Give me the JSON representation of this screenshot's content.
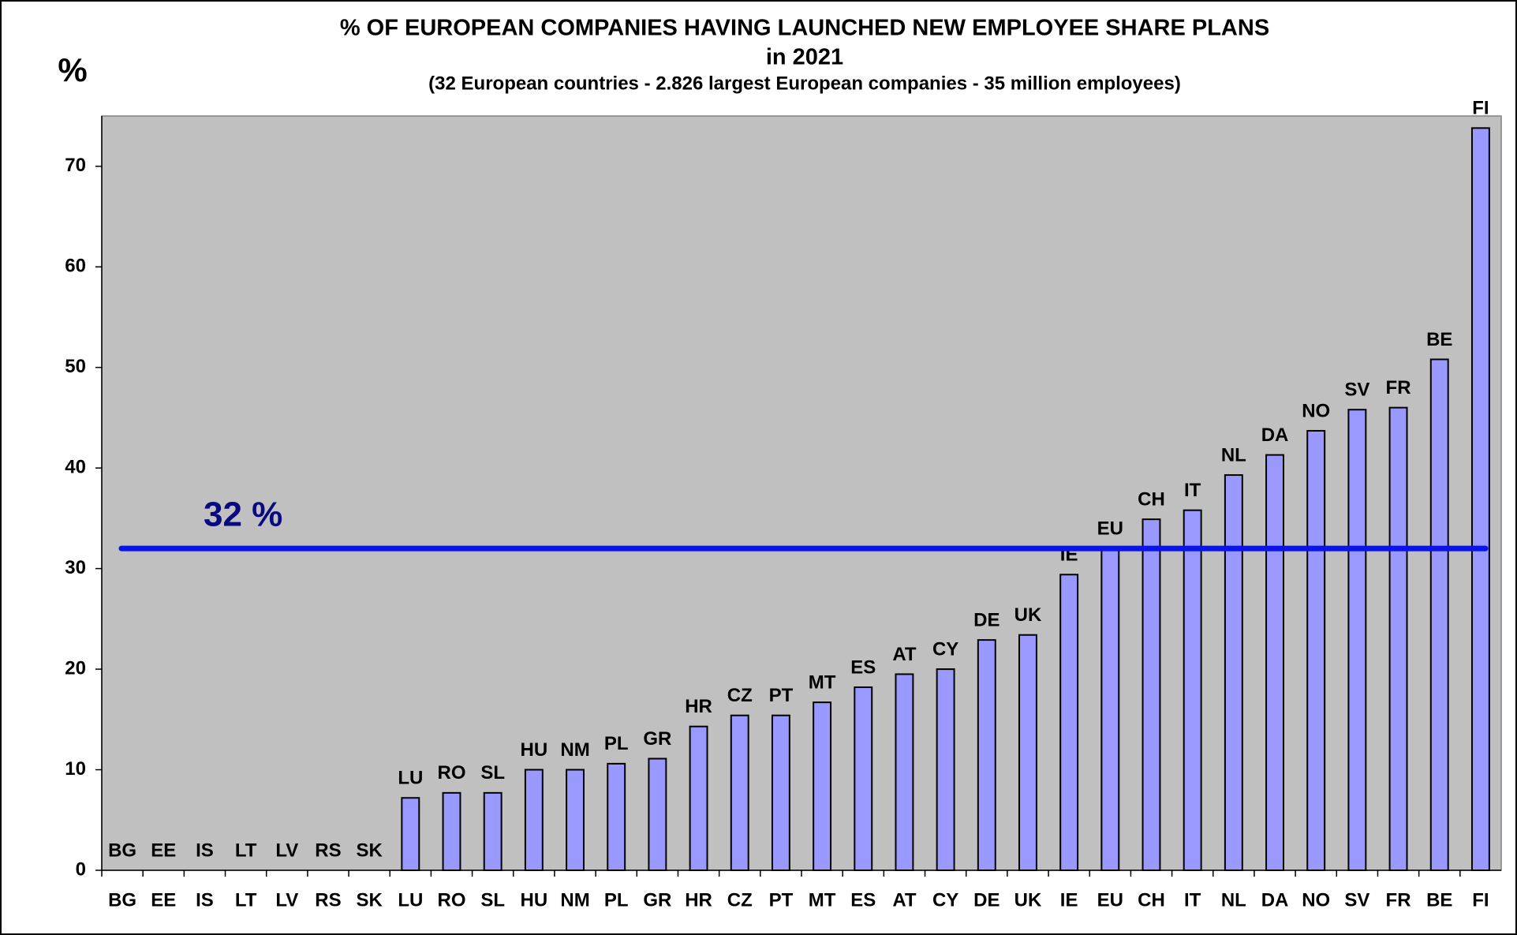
{
  "chart_data": {
    "type": "bar",
    "title": "% OF EUROPEAN COMPANIES HAVING LAUNCHED NEW EMPLOYEE SHARE PLANS",
    "subtitle": "in 2021",
    "note": "(32 European countries - 2.826 largest European companies - 35 million employees)",
    "y_label": "%",
    "categories": [
      "BG",
      "EE",
      "IS",
      "LT",
      "LV",
      "RS",
      "SK",
      "LU",
      "RO",
      "SL",
      "HU",
      "NM",
      "PL",
      "GR",
      "HR",
      "CZ",
      "PT",
      "MT",
      "ES",
      "AT",
      "CY",
      "DE",
      "UK",
      "IE",
      "EU",
      "CH",
      "IT",
      "NL",
      "DA",
      "NO",
      "SV",
      "FR",
      "BE",
      "FI"
    ],
    "values": [
      0,
      0,
      0,
      0,
      0,
      0,
      0,
      7.2,
      7.7,
      7.7,
      10.0,
      10.0,
      10.6,
      11.1,
      14.3,
      15.4,
      15.4,
      16.7,
      18.2,
      19.5,
      20.0,
      22.9,
      23.4,
      29.4,
      32.0,
      34.9,
      35.8,
      39.3,
      41.3,
      43.7,
      45.8,
      46.0,
      50.8,
      73.8
    ],
    "color": "#9999ff",
    "ylim": [
      0,
      75
    ],
    "yticks": [
      0,
      10,
      20,
      30,
      40,
      50,
      60,
      70
    ],
    "plot_background": "#c0c0c0",
    "reference_line": {
      "value": 32,
      "label": "32 %",
      "color": "#0a14e6"
    }
  }
}
